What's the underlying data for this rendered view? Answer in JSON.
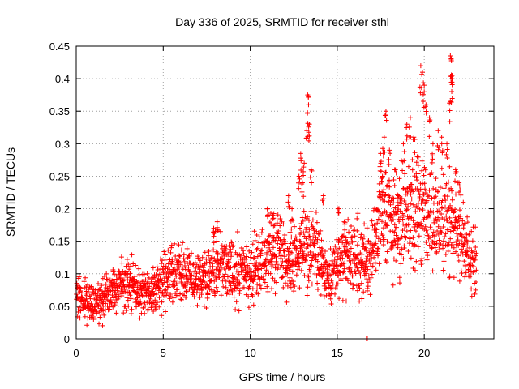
{
  "chart_data": {
    "type": "scatter",
    "title": "Day 336 of 2025, SRMTID for receiver sthl",
    "xlabel": "GPS time / hours",
    "ylabel": "SRMTID / TECUs",
    "xlim": [
      0,
      24
    ],
    "ylim": [
      0,
      0.45
    ],
    "grid": true,
    "marker": "+",
    "color": "#ff0000",
    "x_ticks": [
      0,
      5,
      10,
      15,
      20
    ],
    "y_ticks": [
      0,
      0.05,
      0.1,
      0.15,
      0.2,
      0.25,
      0.3,
      0.35,
      0.4,
      0.45
    ],
    "x_tick_labels": [
      "0",
      "5",
      "10",
      "15",
      "20"
    ],
    "y_tick_labels": [
      "0",
      "0.05",
      "0.1",
      "0.15",
      "0.2",
      "0.25",
      "0.3",
      "0.35",
      "0.4",
      "0.45"
    ],
    "series": [
      {
        "name": "SRMTID",
        "trend": [
          [
            0,
            0.065
          ],
          [
            0.5,
            0.06
          ],
          [
            1,
            0.055
          ],
          [
            1.5,
            0.06
          ],
          [
            2,
            0.075
          ],
          [
            2.5,
            0.08
          ],
          [
            3,
            0.085
          ],
          [
            3.5,
            0.075
          ],
          [
            4,
            0.065
          ],
          [
            4.5,
            0.07
          ],
          [
            5,
            0.09
          ],
          [
            5.5,
            0.1
          ],
          [
            6,
            0.095
          ],
          [
            6.5,
            0.09
          ],
          [
            7,
            0.085
          ],
          [
            7.5,
            0.095
          ],
          [
            8,
            0.11
          ],
          [
            8.5,
            0.115
          ],
          [
            9,
            0.105
          ],
          [
            9.5,
            0.1
          ],
          [
            10,
            0.095
          ],
          [
            10.5,
            0.115
          ],
          [
            11,
            0.13
          ],
          [
            11.5,
            0.14
          ],
          [
            12,
            0.12
          ],
          [
            12.5,
            0.115
          ],
          [
            13,
            0.135
          ],
          [
            13.5,
            0.15
          ],
          [
            14,
            0.12
          ],
          [
            14.5,
            0.09
          ],
          [
            15,
            0.11
          ],
          [
            15.5,
            0.12
          ],
          [
            16,
            0.13
          ],
          [
            16.5,
            0.11
          ],
          [
            17,
            0.13
          ],
          [
            17.5,
            0.2
          ],
          [
            18,
            0.19
          ],
          [
            18.5,
            0.18
          ],
          [
            19,
            0.2
          ],
          [
            19.5,
            0.19
          ],
          [
            20,
            0.2
          ],
          [
            20.5,
            0.18
          ],
          [
            21,
            0.17
          ],
          [
            21.5,
            0.19
          ],
          [
            22,
            0.16
          ],
          [
            22.5,
            0.13
          ],
          [
            23,
            0.12
          ]
        ],
        "spikes": [
          [
            13.3,
            0.375
          ],
          [
            13.35,
            0.36
          ],
          [
            13.4,
            0.33
          ],
          [
            13.25,
            0.32
          ],
          [
            12.9,
            0.285
          ],
          [
            13.1,
            0.27
          ],
          [
            13.5,
            0.26
          ],
          [
            12.8,
            0.25
          ],
          [
            13.0,
            0.24
          ],
          [
            14.2,
            0.22
          ],
          [
            17.5,
            0.27
          ],
          [
            17.6,
            0.25
          ],
          [
            17.8,
            0.35
          ],
          [
            17.7,
            0.31
          ],
          [
            18.0,
            0.29
          ],
          [
            18.3,
            0.26
          ],
          [
            18.8,
            0.3
          ],
          [
            19.0,
            0.33
          ],
          [
            19.2,
            0.34
          ],
          [
            19.4,
            0.31
          ],
          [
            19.8,
            0.42
          ],
          [
            19.9,
            0.41
          ],
          [
            20.0,
            0.39
          ],
          [
            20.1,
            0.36
          ],
          [
            20.3,
            0.34
          ],
          [
            20.5,
            0.3
          ],
          [
            21.5,
            0.435
          ],
          [
            21.55,
            0.43
          ],
          [
            21.6,
            0.405
          ],
          [
            21.6,
            0.4
          ],
          [
            21.5,
            0.365
          ],
          [
            21.0,
            0.31
          ],
          [
            21.3,
            0.3
          ],
          [
            22.0,
            0.24
          ],
          [
            21.8,
            0.26
          ],
          [
            18.5,
            0.22
          ],
          [
            19.6,
            0.28
          ],
          [
            20.8,
            0.32
          ],
          [
            11.0,
            0.2
          ],
          [
            8.1,
            0.18
          ],
          [
            7.9,
            0.17
          ],
          [
            11.3,
            0.19
          ],
          [
            12.4,
            0.2
          ],
          [
            12.2,
            0.22
          ],
          [
            15.1,
            0.2
          ],
          [
            15.4,
            0.18
          ],
          [
            16.7,
            0.0
          ]
        ]
      }
    ]
  }
}
